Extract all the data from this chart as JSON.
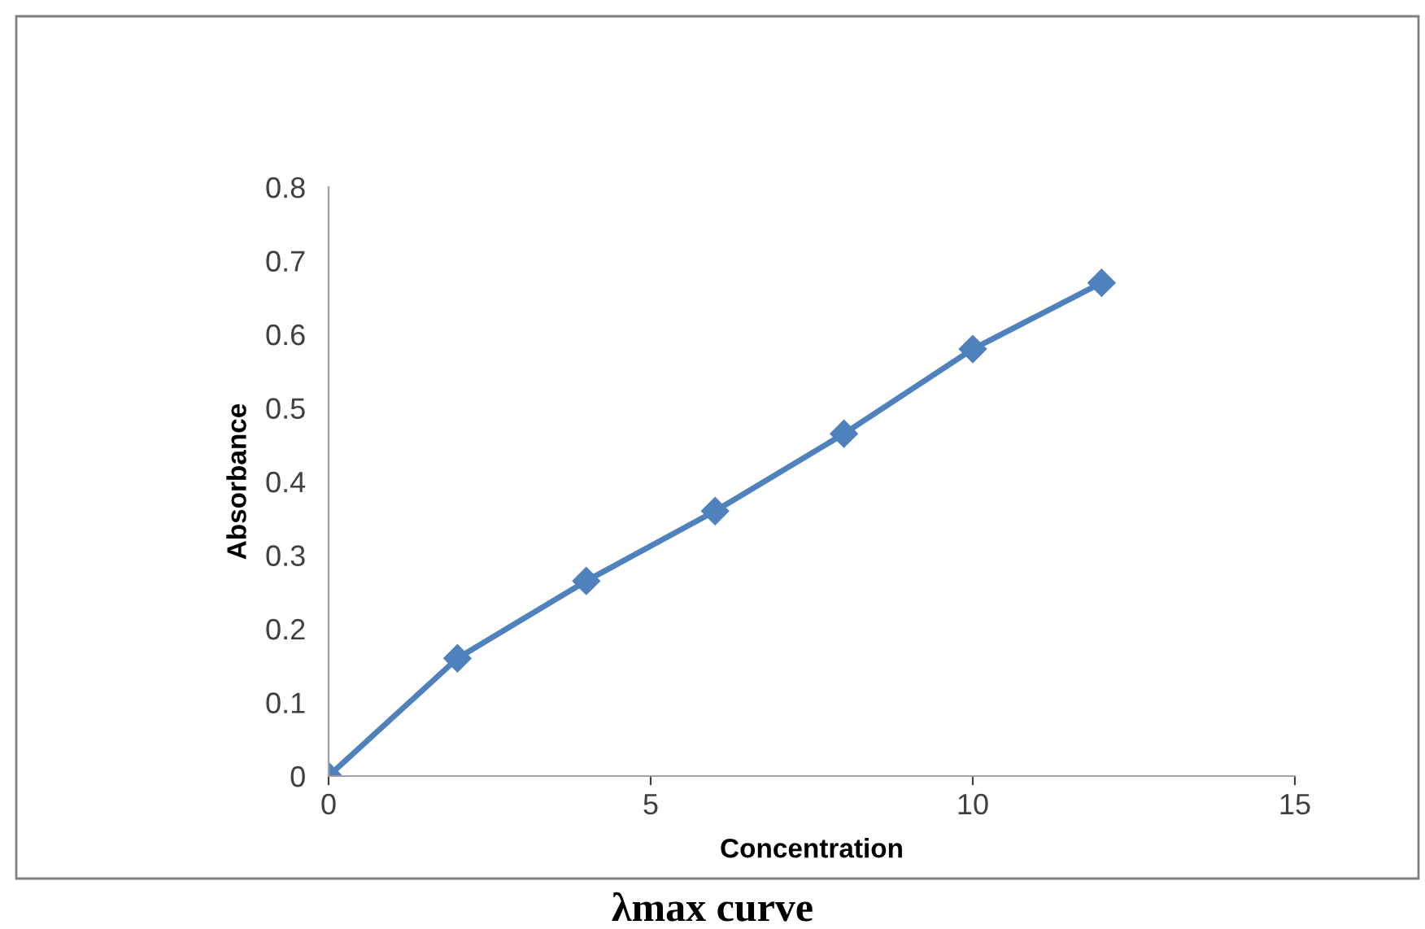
{
  "chart_data": {
    "type": "line",
    "title": "λmax curve",
    "xlabel": "Concentration",
    "ylabel": "Absorbance",
    "x": [
      0,
      2,
      4,
      6,
      8,
      10,
      12
    ],
    "series": [
      {
        "color": "#4f81bd",
        "values": [
          0,
          0.16,
          0.265,
          0.36,
          0.465,
          0.58,
          0.67
        ]
      }
    ],
    "xlim": [
      0,
      15
    ],
    "xticks": [
      0,
      5,
      10,
      15
    ],
    "ylim": [
      0,
      0.8
    ],
    "yticks": [
      0,
      0.1,
      0.2,
      0.3,
      0.4,
      0.5,
      0.6,
      0.7,
      0.8
    ],
    "marker": "diamond",
    "line_style": "solid",
    "grid": false,
    "legend": false
  }
}
